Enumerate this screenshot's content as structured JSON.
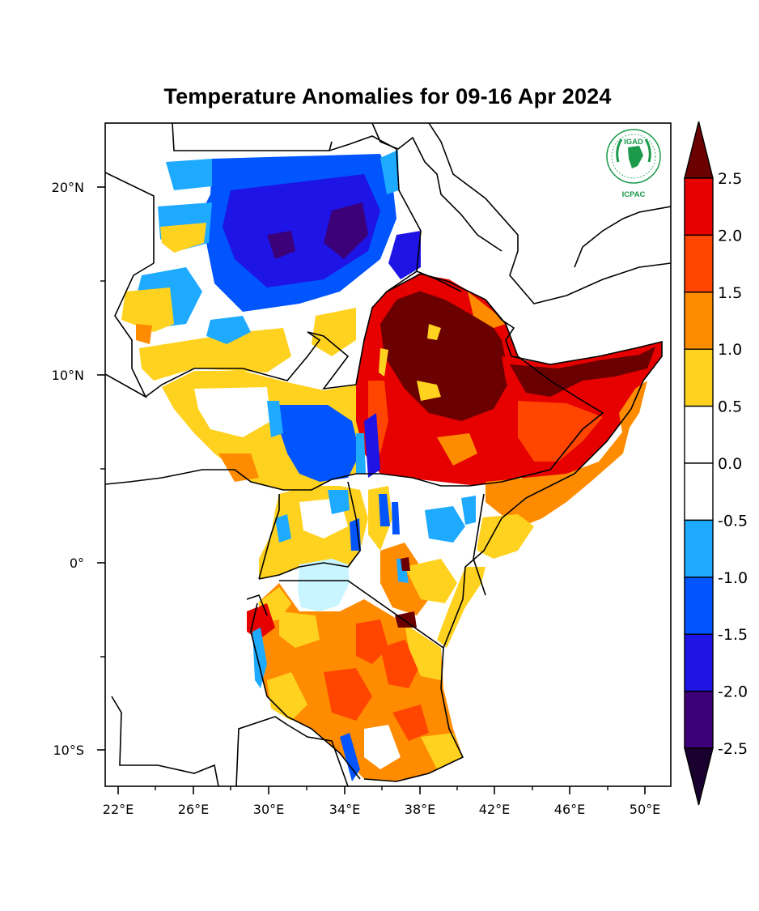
{
  "title": "Temperature Anomalies for 09-16 Apr 2024",
  "logo": {
    "top_text": "IGAD",
    "bottom_text": "ICPAC",
    "color": "#1a9a4a"
  },
  "map": {
    "lon_range": [
      21,
      51.5
    ],
    "lat_range": [
      -12,
      23.5
    ],
    "lon_ticks": [
      "22°E",
      "26°E",
      "30°E",
      "34°E",
      "38°E",
      "42°E",
      "46°E",
      "50°E"
    ],
    "lat_ticks": [
      "20°N",
      "10°N",
      "0°",
      "10°S"
    ]
  },
  "colorbar": {
    "labels": [
      "2.5",
      "2.0",
      "1.5",
      "1.0",
      "0.5",
      "0.0",
      "-0.5",
      "-1.0",
      "-1.5",
      "-2.0",
      "-2.5"
    ],
    "bins": [
      {
        "range": "> 2.5",
        "color": "#6a0000"
      },
      {
        "range": "2.0 to 2.5",
        "color": "#e60000"
      },
      {
        "range": "1.5 to 2.0",
        "color": "#ff4500"
      },
      {
        "range": "1.0 to 1.5",
        "color": "#ff8c00"
      },
      {
        "range": "0.5 to 1.0",
        "color": "#ffd21f"
      },
      {
        "range": "0.0 to 0.5",
        "color": "#ffffff"
      },
      {
        "range": "-0.5 to 0.0",
        "color": "#ffffff"
      },
      {
        "range": "-1.0 to -0.5",
        "color": "#1eaaff"
      },
      {
        "range": "-1.5 to -1.0",
        "color": "#0055ff"
      },
      {
        "range": "-2.0 to -1.5",
        "color": "#1e14e6"
      },
      {
        "range": "-2.5 to -2.0",
        "color": "#3c0078"
      },
      {
        "range": "< -2.5",
        "color": "#1a002e"
      }
    ]
  }
}
